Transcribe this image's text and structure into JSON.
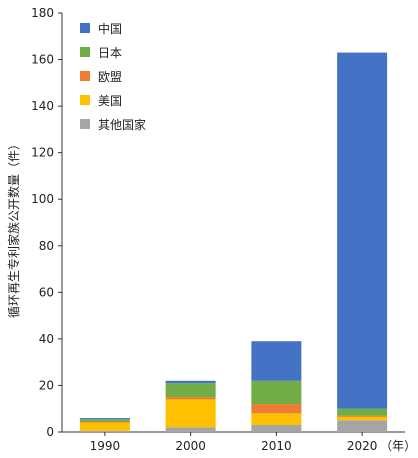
{
  "chart_data": {
    "type": "bar",
    "stacked": true,
    "categories": [
      "1990",
      "2000",
      "2010",
      "2020"
    ],
    "x_unit_label": "（年）",
    "ylabel": "循环再生专利家族公开数量（件）",
    "ylim": [
      0,
      180
    ],
    "yticks": [
      0,
      20,
      40,
      60,
      80,
      100,
      120,
      140,
      160,
      180
    ],
    "grid": false,
    "legend_position": "top-left",
    "series": [
      {
        "name": "其他国家",
        "color": "#a5a5a5",
        "values": [
          0.5,
          2,
          3,
          5
        ]
      },
      {
        "name": "美国",
        "color": "#ffc000",
        "values": [
          3.5,
          12,
          5,
          1.5
        ]
      },
      {
        "name": "欧盟",
        "color": "#ed7d31",
        "values": [
          0.5,
          1,
          4,
          0.5
        ]
      },
      {
        "name": "日本",
        "color": "#70ad47",
        "values": [
          1,
          6,
          10,
          3
        ]
      },
      {
        "name": "中国",
        "color": "#4472c4",
        "values": [
          0.5,
          1,
          17,
          153
        ]
      }
    ],
    "legend_order": [
      "中国",
      "日本",
      "欧盟",
      "美国",
      "其他国家"
    ]
  }
}
